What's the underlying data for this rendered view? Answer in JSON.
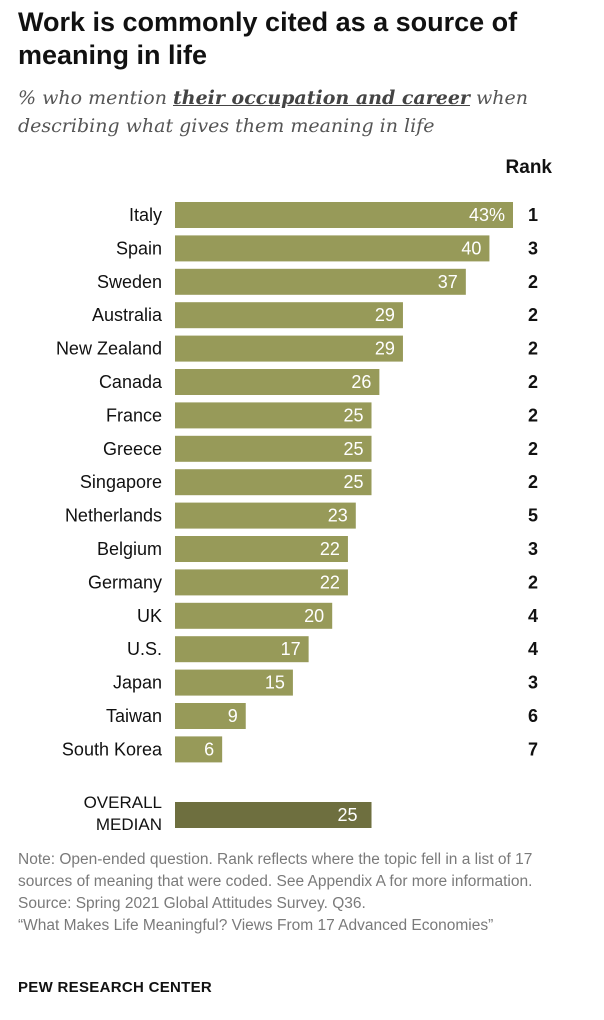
{
  "title": "Work is commonly cited as a source of meaning in life",
  "subtitle": {
    "before": "% who mention ",
    "emphasis": "their occupation and career",
    "after": " when describing what gives them meaning in life"
  },
  "rank_header": "Rank",
  "colors": {
    "bar": "#979a59",
    "median_bar": "#6e6f3f",
    "bar_text": "#ffffff"
  },
  "chart_data": {
    "type": "bar",
    "orientation": "horizontal",
    "title": "Work is commonly cited as a source of meaning in life",
    "categories": [
      "Italy",
      "Spain",
      "Sweden",
      "Australia",
      "New Zealand",
      "Canada",
      "France",
      "Greece",
      "Singapore",
      "Netherlands",
      "Belgium",
      "Germany",
      "UK",
      "U.S.",
      "Japan",
      "Taiwan",
      "South Korea"
    ],
    "values": [
      43,
      40,
      37,
      29,
      29,
      26,
      25,
      25,
      25,
      23,
      22,
      22,
      20,
      17,
      15,
      9,
      6
    ],
    "value_labels": [
      "43%",
      "40",
      "37",
      "29",
      "29",
      "26",
      "25",
      "25",
      "25",
      "23",
      "22",
      "22",
      "20",
      "17",
      "15",
      "9",
      "6"
    ],
    "ranks": [
      "1",
      "3",
      "2",
      "2",
      "2",
      "2",
      "2",
      "2",
      "2",
      "5",
      "3",
      "2",
      "4",
      "4",
      "3",
      "6",
      "7"
    ],
    "median": {
      "label_lines": [
        "OVERALL",
        "MEDIAN"
      ],
      "value": 25,
      "value_label": "25"
    },
    "xlim": [
      0,
      43
    ],
    "xlabel": "",
    "ylabel": ""
  },
  "notes": [
    "Note: Open-ended question. Rank reflects where the topic fell in a list of 17 sources of meaning that were coded. See Appendix A for more information.",
    "Source: Spring 2021 Global Attitudes Survey. Q36.",
    "“What Makes Life Meaningful? Views From 17 Advanced Economies”"
  ],
  "footer": "PEW RESEARCH CENTER"
}
